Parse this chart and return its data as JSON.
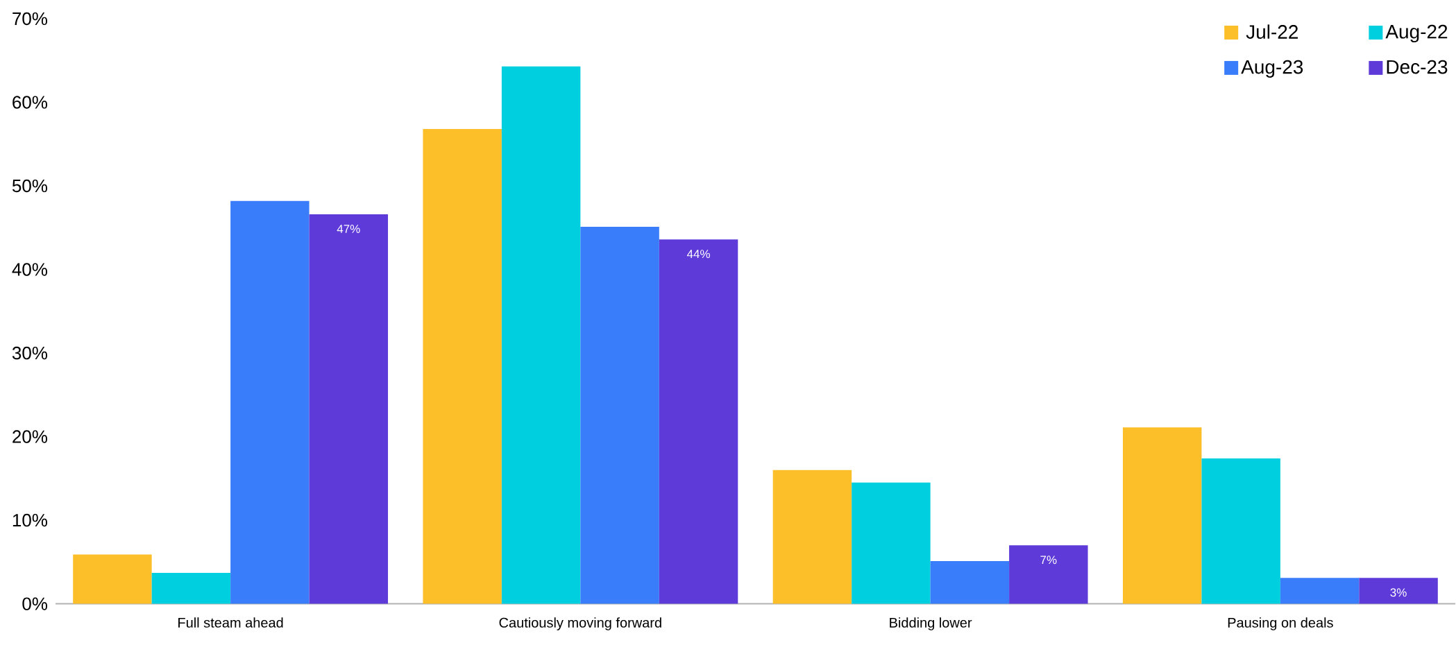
{
  "chart_data": {
    "type": "bar",
    "categories": [
      "Full steam ahead",
      "Cautiously moving forward",
      "Bidding lower",
      "Pausing on deals"
    ],
    "series": [
      {
        "name": "Jul-22",
        "color": "#fcbf2a",
        "values": [
          5.9,
          56.8,
          16.0,
          21.1
        ]
      },
      {
        "name": "Aug-22",
        "color": "#00cfdf",
        "values": [
          3.7,
          64.3,
          14.5,
          17.4
        ]
      },
      {
        "name": "Aug-23",
        "color": "#3a7dfa",
        "values": [
          48.2,
          45.1,
          5.1,
          3.1
        ]
      },
      {
        "name": "Dec-23",
        "color": "#5e3bd9",
        "values": [
          46.6,
          43.6,
          7.0,
          3.1
        ],
        "value_labels": [
          "47%",
          "44%",
          "7%",
          "3%"
        ]
      }
    ],
    "ylim": [
      0,
      70
    ],
    "yticks": [
      {
        "value": 0,
        "label": "0%"
      },
      {
        "value": 10,
        "label": "10%"
      },
      {
        "value": 20,
        "label": "20%"
      },
      {
        "value": 30,
        "label": "30%"
      },
      {
        "value": 40,
        "label": "40%"
      },
      {
        "value": 50,
        "label": "50%"
      },
      {
        "value": 60,
        "label": "60%"
      },
      {
        "value": 70,
        "label": "70%"
      }
    ],
    "grid": false,
    "legend": "top right"
  }
}
